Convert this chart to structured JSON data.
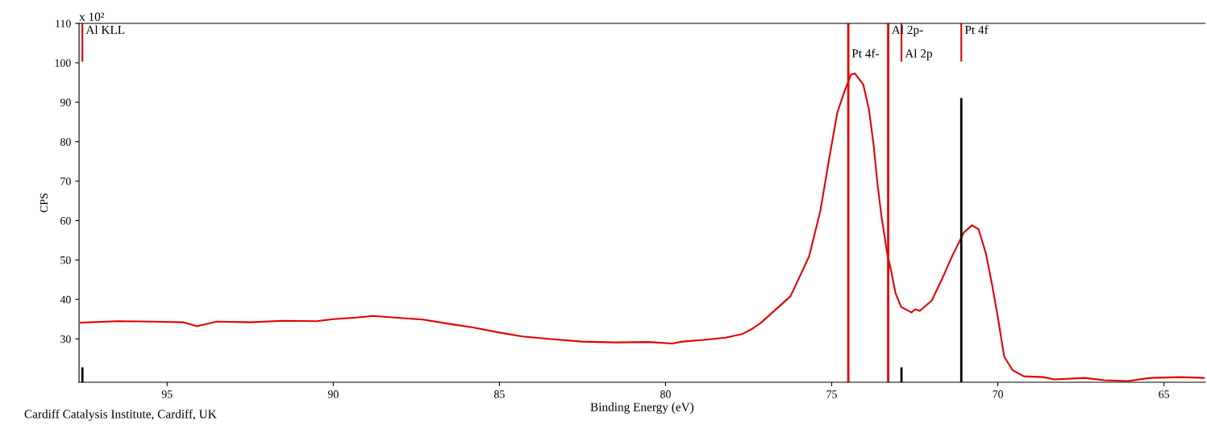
{
  "chart_data": {
    "type": "line",
    "xlabel": "Binding Energy (eV)",
    "ylabel": "CPS",
    "xlim": [
      97.65,
      63.76
    ],
    "xticks": [
      95,
      90,
      85,
      80,
      75,
      70,
      65
    ],
    "ylim": [
      19,
      110
    ],
    "yticks": [
      30,
      40,
      50,
      60,
      70,
      80,
      90,
      100,
      110
    ],
    "grid": false,
    "legend": false,
    "marker": "none",
    "line_style": "solid",
    "series": [
      {
        "color": "#e00000",
        "x": [
          97.6,
          96.5,
          95.5,
          94.5,
          94.1,
          93.5,
          92.5,
          91.5,
          90.5,
          90.0,
          89.3,
          88.8,
          88.0,
          87.3,
          86.5,
          85.8,
          85.0,
          84.3,
          83.5,
          82.5,
          81.5,
          80.5,
          79.8,
          79.5,
          78.8,
          78.2,
          77.7,
          77.4,
          77.14,
          76.24,
          75.68,
          75.34,
          75.07,
          74.83,
          74.61,
          74.42,
          74.3,
          74.05,
          73.88,
          73.74,
          73.62,
          73.5,
          73.33,
          73.2,
          73.08,
          72.91,
          72.6,
          72.48,
          72.35,
          71.99,
          71.7,
          71.38,
          71.02,
          70.78,
          70.58,
          70.36,
          70.17,
          70.0,
          69.81,
          69.56,
          69.22,
          68.64,
          68.3,
          67.38,
          66.8,
          66.09,
          65.41,
          64.49,
          63.8
        ],
        "values": [
          34.1,
          34.5,
          34.4,
          34.2,
          33.2,
          34.4,
          34.2,
          34.6,
          34.5,
          35.0,
          35.4,
          35.8,
          35.3,
          34.9,
          33.8,
          32.9,
          31.6,
          30.6,
          30.0,
          29.3,
          29.1,
          29.2,
          28.8,
          29.3,
          29.8,
          30.3,
          31.2,
          32.5,
          34.0,
          40.8,
          50.9,
          62.5,
          76.0,
          87.4,
          92.9,
          97.0,
          97.3,
          94.5,
          88.2,
          79.3,
          69.1,
          61.0,
          51.7,
          46.8,
          41.6,
          38.1,
          36.7,
          37.5,
          37.1,
          39.7,
          44.8,
          50.9,
          57.0,
          58.8,
          57.8,
          51.7,
          43.6,
          35.5,
          25.5,
          22.1,
          20.5,
          20.3,
          19.7,
          20.1,
          19.5,
          19.3,
          20.1,
          20.3,
          20.1
        ]
      },
      {
        "color": "#e00000",
        "x": [
          97.55,
          97.55
        ],
        "values": [
          110,
          100.5
        ]
      },
      {
        "color": "#e00000",
        "x": [
          72.9,
          72.9
        ],
        "values": [
          110,
          100.5
        ]
      },
      {
        "color": "#e00000",
        "x": [
          71.1,
          71.1
        ],
        "values": [
          110,
          100.5
        ]
      },
      {
        "color": "#000000",
        "x": [
          71.1,
          71.1
        ],
        "values": [
          90.8,
          19
        ]
      },
      {
        "color": "#000000",
        "x": [
          97.55,
          97.55
        ],
        "values": [
          22.5,
          19
        ]
      },
      {
        "color": "#000000",
        "x": [
          72.9,
          72.9
        ],
        "values": [
          22.5,
          19
        ]
      }
    ],
    "ref_lines": [
      {
        "axis": "x",
        "value": 74.5,
        "color": "#e00000"
      },
      {
        "axis": "x",
        "value": 73.3,
        "color": "#e00000"
      }
    ],
    "annotations": [
      "x 10²",
      "Cardiff Catalysis Institute, Cardiff, UK",
      {
        "text": "Al KLL",
        "x": 97.55,
        "y": 109.5
      },
      {
        "text": "Pt 4f-",
        "x": 74.5,
        "y": 103.5
      },
      {
        "text": "Al 2p-",
        "x": 73.3,
        "y": 109.5
      },
      {
        "text": "Al 2p",
        "x": 72.9,
        "y": 103.5
      },
      {
        "text": "Pt 4f",
        "x": 71.1,
        "y": 109.5
      }
    ]
  }
}
